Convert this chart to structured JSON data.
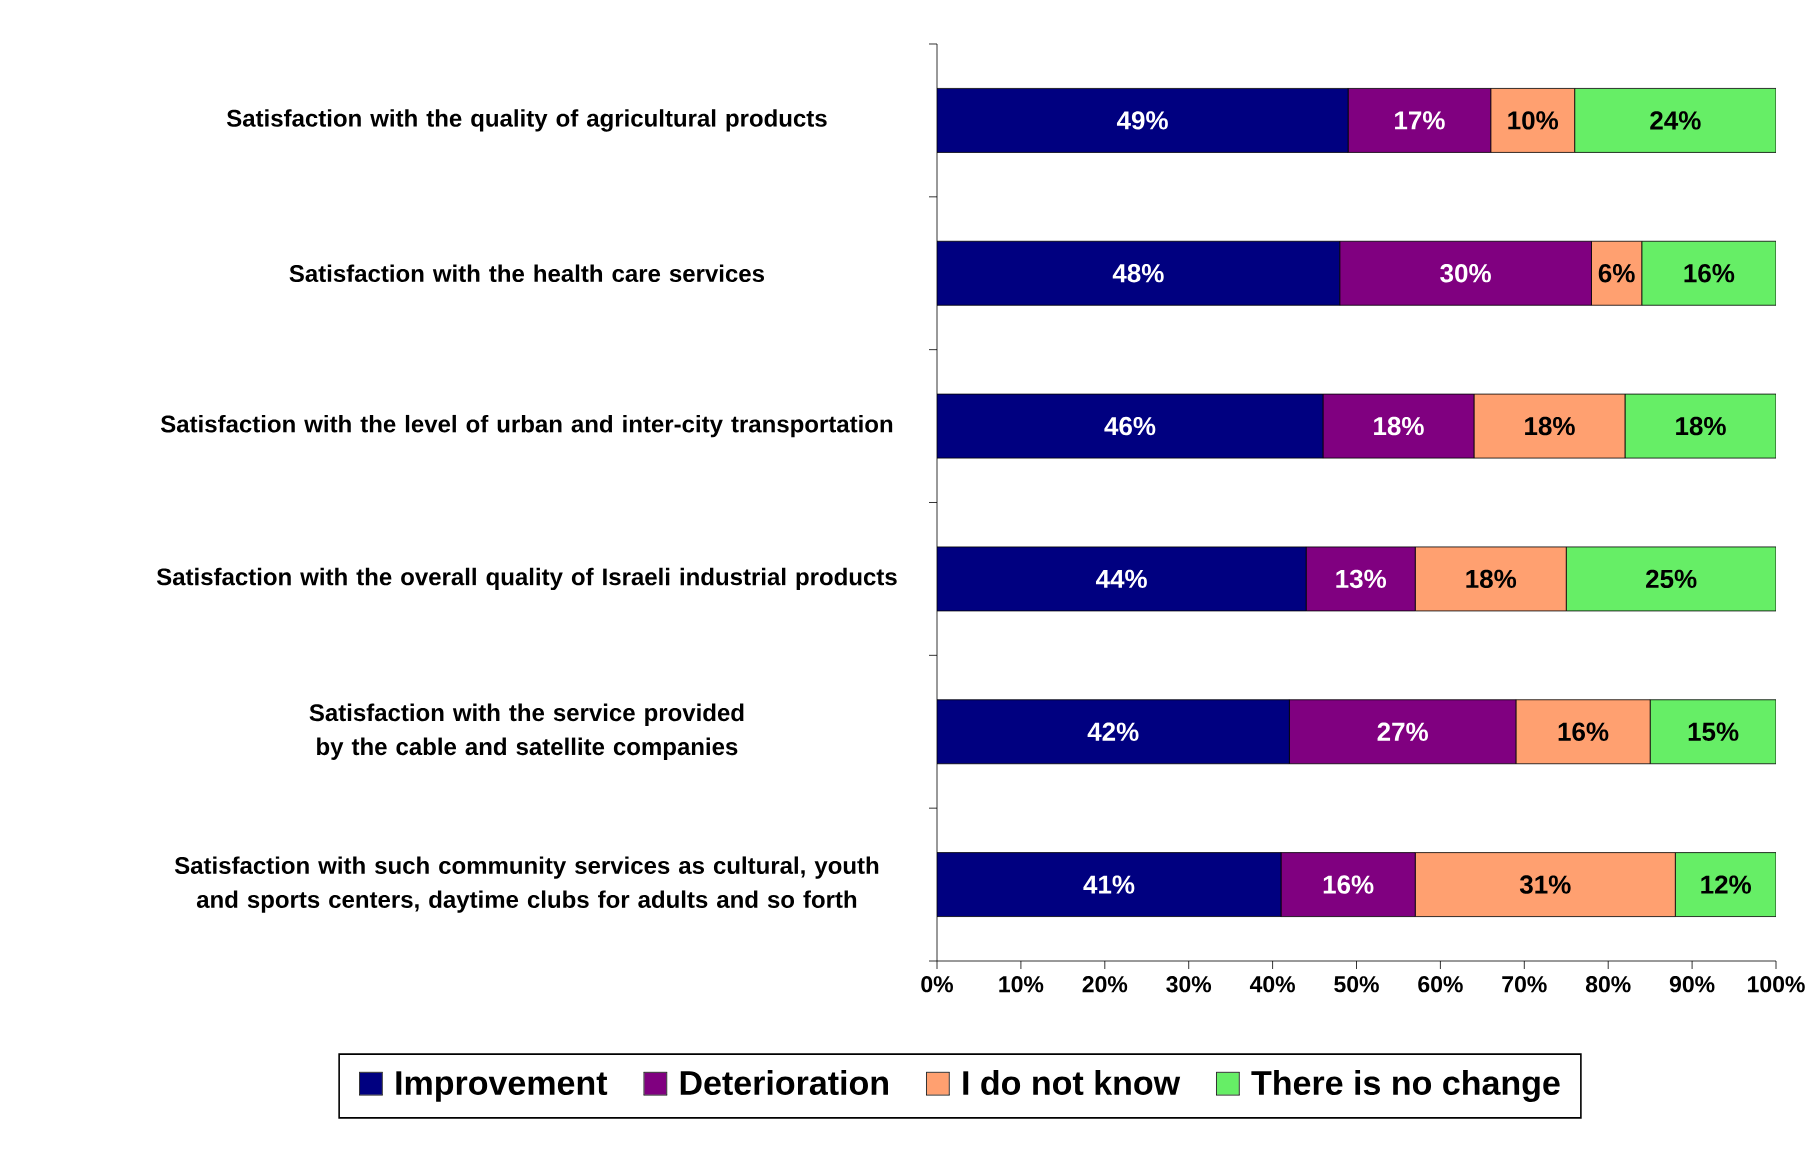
{
  "chart_data": {
    "type": "bar",
    "orientation": "horizontal",
    "stacked": true,
    "categories": [
      "Satisfaction with the quality of agricultural products",
      "Satisfaction with the health care services",
      "Satisfaction with the level of urban and inter-city transportation",
      "Satisfaction with the overall quality of Israeli industrial products",
      "Satisfaction with the service provided by the cable and satellite companies",
      "Satisfaction with such community services as cultural, youth and sports centers, daytime clubs for adults and so forth"
    ],
    "series": [
      {
        "name": "Improvement",
        "color": "#000080",
        "values": [
          49,
          48,
          46,
          44,
          42,
          41
        ],
        "value_labels": [
          "49%",
          "48%",
          "46%",
          "44%",
          "42%",
          "41%"
        ]
      },
      {
        "name": "Deterioration",
        "color": "#800080",
        "values": [
          17,
          30,
          18,
          13,
          27,
          16
        ],
        "value_labels": [
          "17%",
          "30%",
          "18%",
          "13%",
          "27%",
          "16%"
        ]
      },
      {
        "name": "I do not know",
        "color": "#ffa070",
        "values": [
          10,
          6,
          18,
          18,
          16,
          31
        ],
        "value_labels": [
          "10%",
          "6%",
          "18%",
          "18%",
          "16%",
          "31%"
        ]
      },
      {
        "name": "There is no change",
        "color": "#66ee66",
        "values": [
          24,
          16,
          18,
          25,
          15,
          12
        ],
        "value_labels": [
          "24%",
          "16%",
          "18%",
          "25%",
          "15%",
          "12%"
        ]
      }
    ],
    "xlim": [
      0,
      100
    ],
    "xticks": [
      {
        "value": 0,
        "label": "0%"
      },
      {
        "value": 10,
        "label": "10%"
      },
      {
        "value": 20,
        "label": "20%"
      },
      {
        "value": 30,
        "label": "30%"
      },
      {
        "value": 40,
        "label": "40%"
      },
      {
        "value": 50,
        "label": "50%"
      },
      {
        "value": 60,
        "label": "60%"
      },
      {
        "value": 70,
        "label": "70%"
      },
      {
        "value": 80,
        "label": "80%"
      },
      {
        "value": 90,
        "label": "90%"
      },
      {
        "value": 100,
        "label": "100%"
      }
    ],
    "grid": false,
    "legend": "bottom"
  }
}
